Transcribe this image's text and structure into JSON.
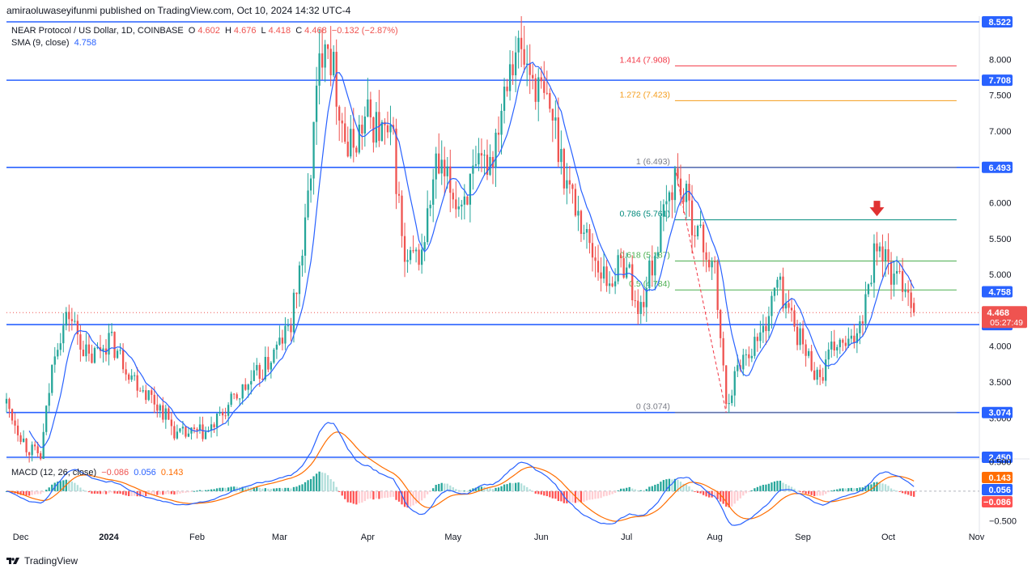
{
  "header": {
    "publisher_line": "amiraoluwaseyifunmi published on TradingView.com, Oct 10, 2024 14:32 UTC-4"
  },
  "legend": {
    "symbol": "NEAR Protocol / US Dollar, 1D, COINBASE",
    "open_label": "O",
    "open": "4.602",
    "high_label": "H",
    "high": "4.676",
    "low_label": "L",
    "low": "4.418",
    "close_label": "C",
    "close": "4.468",
    "change": "−0.132 (−2.87%)",
    "sma_label": "SMA (9, close)",
    "sma_value": "4.758",
    "macd_label": "MACD (12, 26, close)",
    "macd_hist": "−0.086",
    "macd_line": "0.056",
    "macd_signal": "0.143"
  },
  "footer": {
    "brand": "TradingView"
  },
  "colors": {
    "up": "#26a69a",
    "down": "#ef5350",
    "hline": "#2962ff",
    "sma": "#2962ff",
    "fib_1414": "#f23645",
    "fib_1272": "#f59c1a",
    "fib_0786": "#00897b",
    "fib_0618": "#4caf50",
    "fib_05": "#4caf50",
    "macd_line": "#2962ff",
    "signal_line": "#ff6d00",
    "hist_up_strong": "#26a69a",
    "hist_up_weak": "#b2dfdb",
    "hist_down_strong": "#ff5252",
    "hist_down_weak": "#ffcdd2"
  },
  "chart_data": [
    {
      "type": "candlestick",
      "symbol": "NEAR Protocol / US Dollar, 1D, COINBASE",
      "ylim": [
        2.45,
        8.522
      ],
      "y_ticks": [
        "8.000",
        "7.500",
        "7.000",
        "6.500",
        "6.000",
        "5.500",
        "5.000",
        "4.500",
        "4.000",
        "3.500",
        "3.000"
      ],
      "x_ticks": [
        "Dec",
        "2024",
        "Feb",
        "Mar",
        "Apr",
        "May",
        "Jun",
        "Jul",
        "Aug",
        "Sep",
        "Oct",
        "Nov"
      ],
      "x_start": "2023-11-26",
      "x_end": "2024-11-02",
      "horizontal_levels": [
        8.522,
        7.708,
        6.493,
        4.3,
        3.074,
        2.45
      ],
      "price_labels": [
        {
          "text": "8.522",
          "value": 8.522,
          "color": "#2962ff"
        },
        {
          "text": "7.708",
          "value": 7.708,
          "color": "#2962ff"
        },
        {
          "text": "6.493",
          "value": 6.493,
          "color": "#2962ff"
        },
        {
          "text": "4.758",
          "value": 4.758,
          "color": "#2962ff"
        },
        {
          "text": "4.300",
          "value": 4.3,
          "color": "#2962ff"
        },
        {
          "text": "3.074",
          "value": 3.074,
          "color": "#2962ff"
        },
        {
          "text": "2.450",
          "value": 2.45,
          "color": "#2962ff"
        }
      ],
      "current_price": {
        "text": "4.468",
        "countdown": "05:27:49",
        "value": 4.468
      },
      "fibonacci": {
        "swing_high": {
          "date": "2024-07-18",
          "price": 6.493
        },
        "swing_low": {
          "date": "2024-08-05",
          "price": 3.074
        },
        "start_date": "2024-07-18",
        "end_date": "2024-10-25",
        "levels": [
          {
            "label": "1.414 (7.908)",
            "value": 7.908,
            "color": "#f23645"
          },
          {
            "label": "1.272 (7.423)",
            "value": 7.423,
            "color": "#f59c1a"
          },
          {
            "label": "1 (6.493)",
            "value": 6.493,
            "color": "#787b86"
          },
          {
            "label": "0.786 (5.761)",
            "value": 5.761,
            "color": "#00897b"
          },
          {
            "label": "0.618 (5.187)",
            "value": 5.187,
            "color": "#4caf50"
          },
          {
            "label": "0.5 (4.784)",
            "value": 4.784,
            "color": "#4caf50"
          },
          {
            "label": "0 (3.074)",
            "value": 3.074,
            "color": "#787b86"
          }
        ]
      },
      "marker": {
        "type": "down-arrow",
        "date": "2024-09-27",
        "price": 5.8
      },
      "anchors": [
        [
          "2023-11-26",
          3.2
        ],
        [
          "2023-12-03",
          2.6
        ],
        [
          "2023-12-08",
          2.45
        ],
        [
          "2023-12-13",
          4.0
        ],
        [
          "2023-12-18",
          4.45
        ],
        [
          "2023-12-25",
          3.8
        ],
        [
          "2024-01-01",
          4.1
        ],
        [
          "2024-01-10",
          3.55
        ],
        [
          "2024-01-20",
          3.1
        ],
        [
          "2024-01-25",
          2.75
        ],
        [
          "2024-02-05",
          2.8
        ],
        [
          "2024-02-15",
          3.3
        ],
        [
          "2024-02-25",
          3.7
        ],
        [
          "2024-03-05",
          4.3
        ],
        [
          "2024-03-10",
          5.6
        ],
        [
          "2024-03-15",
          7.9
        ],
        [
          "2024-03-17",
          8.5
        ],
        [
          "2024-03-25",
          6.7
        ],
        [
          "2024-04-01",
          7.2
        ],
        [
          "2024-04-10",
          6.8
        ],
        [
          "2024-04-14",
          5.1
        ],
        [
          "2024-04-20",
          5.3
        ],
        [
          "2024-04-25",
          6.5
        ],
        [
          "2024-05-03",
          6.0
        ],
        [
          "2024-05-08",
          6.3
        ],
        [
          "2024-05-15",
          6.7
        ],
        [
          "2024-05-20",
          7.9
        ],
        [
          "2024-05-23",
          8.2
        ],
        [
          "2024-06-05",
          7.2
        ],
        [
          "2024-06-10",
          6.3
        ],
        [
          "2024-06-18",
          5.4
        ],
        [
          "2024-06-24",
          4.9
        ],
        [
          "2024-07-01",
          5.2
        ],
        [
          "2024-07-05",
          4.4
        ],
        [
          "2024-07-11",
          5.3
        ],
        [
          "2024-07-18",
          6.4
        ],
        [
          "2024-07-24",
          5.8
        ],
        [
          "2024-08-01",
          5.0
        ],
        [
          "2024-08-05",
          3.2
        ],
        [
          "2024-08-10",
          3.8
        ],
        [
          "2024-08-18",
          4.2
        ],
        [
          "2024-08-23",
          4.9
        ],
        [
          "2024-08-27",
          4.5
        ],
        [
          "2024-09-02",
          3.9
        ],
        [
          "2024-09-07",
          3.55
        ],
        [
          "2024-09-12",
          4.0
        ],
        [
          "2024-09-18",
          4.0
        ],
        [
          "2024-09-22",
          4.5
        ],
        [
          "2024-09-27",
          5.5
        ],
        [
          "2024-10-03",
          4.9
        ],
        [
          "2024-10-07",
          4.9
        ],
        [
          "2024-10-10",
          4.468
        ]
      ],
      "sma": {
        "label": "SMA (9, close)",
        "value": 4.758
      }
    },
    {
      "type": "macd",
      "label": "MACD (12, 26, close)",
      "ylim": [
        -0.62,
        0.48
      ],
      "y_ticks": [
        "0.500",
        "−0.500"
      ],
      "last": {
        "histogram": -0.086,
        "macd": 0.056,
        "signal": 0.143
      },
      "value_labels": [
        {
          "text": "0.143",
          "value": 0.143,
          "color": "#ff6d00"
        },
        {
          "text": "0.056",
          "value": 0.056,
          "color": "#2962ff"
        },
        {
          "text": "−0.086",
          "value": -0.086,
          "color": "#ff5252"
        }
      ]
    }
  ]
}
